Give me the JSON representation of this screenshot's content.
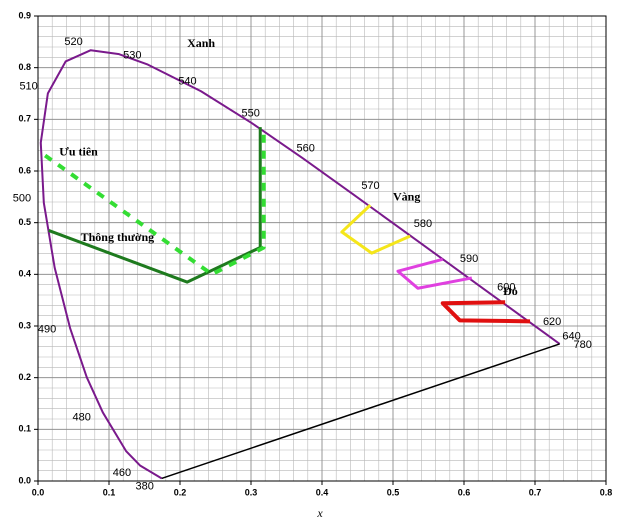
{
  "chart_data": {
    "type": "line",
    "xlabel": "x",
    "xlim": [
      0,
      0.8
    ],
    "ylim": [
      0,
      0.9
    ],
    "xticks": [
      {
        "value": 0,
        "label": "0.0"
      },
      0.1,
      0.2,
      0.3,
      0.4,
      0.5,
      0.6,
      0.7,
      0.8
    ],
    "yticks": [
      {
        "value": 0,
        "label": "0.0"
      },
      0.1,
      0.2,
      0.3,
      0.4,
      0.5,
      0.6,
      0.7,
      0.8,
      0.9
    ],
    "grid": true,
    "minor_grid_step": 0.02,
    "series": [
      {
        "color": "#7a1a8c",
        "width": 2,
        "x": [
          0.1741,
          0.144,
          0.1241,
          0.0913,
          0.0687,
          0.0454,
          0.0235,
          0.0082,
          0.0039,
          0.0139,
          0.0389,
          0.0743,
          0.1142,
          0.1547,
          0.2296,
          0.3016,
          0.3731,
          0.4441,
          0.5125,
          0.5752,
          0.627,
          0.6915,
          0.719,
          0.7347
        ],
        "values": [
          0.005,
          0.0297,
          0.0578,
          0.1327,
          0.2007,
          0.295,
          0.4127,
          0.5384,
          0.6548,
          0.7502,
          0.812,
          0.8338,
          0.8262,
          0.8059,
          0.7543,
          0.6923,
          0.6245,
          0.5547,
          0.4866,
          0.4242,
          0.3725,
          0.3083,
          0.2809,
          0.2653
        ],
        "point_labels": [
          "380",
          "460",
          null,
          "480",
          null,
          "490",
          null,
          "500",
          null,
          "510",
          null,
          "520",
          null,
          "530",
          "540",
          "550",
          "560",
          "570",
          "580",
          "590",
          "600",
          "620",
          "640",
          "780"
        ]
      },
      {
        "color": "#000000",
        "width": 1.5,
        "x": [
          0.1741,
          0.7347
        ],
        "values": [
          0.005,
          0.2653
        ]
      },
      {
        "color": "#1e7a1e",
        "width": 3,
        "x": [
          0.015,
          0.21,
          0.313,
          0.313
        ],
        "values": [
          0.485,
          0.385,
          0.452,
          0.685
        ]
      },
      {
        "color": "#33dd33",
        "width": 4,
        "dash": true,
        "x": [
          0.01,
          0.245,
          0.318,
          0.318
        ],
        "values": [
          0.63,
          0.4,
          0.452,
          0.68
        ]
      },
      {
        "color": "#f5e61a",
        "width": 3,
        "x": [
          0.468,
          0.428,
          0.47,
          0.524
        ],
        "values": [
          0.534,
          0.482,
          0.441,
          0.474
        ]
      },
      {
        "color": "#e040e0",
        "width": 3,
        "x": [
          0.57,
          0.507,
          0.535,
          0.611
        ],
        "values": [
          0.429,
          0.406,
          0.373,
          0.393
        ]
      },
      {
        "color": "#e01010",
        "width": 4,
        "x": [
          0.658,
          0.57,
          0.594,
          0.693
        ],
        "values": [
          0.346,
          0.344,
          0.311,
          0.309
        ]
      }
    ],
    "annotations": [
      "Xanh",
      "Ưu tiên",
      "Thông thường",
      "Vàng",
      "Đỏ"
    ]
  }
}
